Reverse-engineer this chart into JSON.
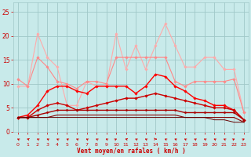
{
  "x": [
    0,
    1,
    2,
    3,
    4,
    5,
    6,
    7,
    8,
    9,
    10,
    11,
    12,
    13,
    14,
    15,
    16,
    17,
    18,
    19,
    20,
    21,
    22,
    23
  ],
  "series": [
    {
      "y": [
        9.5,
        9.5,
        20.5,
        15.5,
        13.5,
        5.5,
        5.5,
        10.5,
        9.5,
        9.5,
        20.5,
        13.0,
        18.0,
        13.0,
        18.0,
        22.5,
        18.0,
        13.5,
        13.5,
        15.5,
        15.5,
        13.0,
        13.0,
        4.0
      ],
      "color": "#ffaaaa",
      "lw": 0.8,
      "marker": "D",
      "ms": 1.8
    },
    {
      "y": [
        11.0,
        9.5,
        15.5,
        13.5,
        10.5,
        10.0,
        9.0,
        10.5,
        10.5,
        10.0,
        15.5,
        15.5,
        15.5,
        15.5,
        15.5,
        15.5,
        10.5,
        9.5,
        10.5,
        10.5,
        10.5,
        10.5,
        11.0,
        4.0
      ],
      "color": "#ff8888",
      "lw": 0.8,
      "marker": "D",
      "ms": 1.8
    },
    {
      "y": [
        3.0,
        3.5,
        5.5,
        8.5,
        9.5,
        9.5,
        8.5,
        8.0,
        9.5,
        9.5,
        9.5,
        9.5,
        8.0,
        9.5,
        12.0,
        11.5,
        9.5,
        8.5,
        7.0,
        6.5,
        5.5,
        5.5,
        4.5,
        2.5
      ],
      "color": "#ff0000",
      "lw": 1.0,
      "marker": "D",
      "ms": 1.8
    },
    {
      "y": [
        3.0,
        3.0,
        4.5,
        5.5,
        6.0,
        5.5,
        4.5,
        5.0,
        5.5,
        6.0,
        6.5,
        7.0,
        7.0,
        7.5,
        8.0,
        7.5,
        7.0,
        6.5,
        6.0,
        5.5,
        5.0,
        5.0,
        4.5,
        2.5
      ],
      "color": "#cc0000",
      "lw": 1.0,
      "marker": "D",
      "ms": 1.8
    },
    {
      "y": [
        3.0,
        3.0,
        3.5,
        4.0,
        4.5,
        4.5,
        4.5,
        4.5,
        4.5,
        4.5,
        4.5,
        4.5,
        4.5,
        4.5,
        4.5,
        4.5,
        4.5,
        4.0,
        4.0,
        4.0,
        4.0,
        4.0,
        4.0,
        2.5
      ],
      "color": "#aa0000",
      "lw": 1.0,
      "marker": "D",
      "ms": 1.5
    },
    {
      "y": [
        3.0,
        3.0,
        3.0,
        3.0,
        3.5,
        3.5,
        3.5,
        3.5,
        3.5,
        3.5,
        3.5,
        3.5,
        3.5,
        3.5,
        3.5,
        3.5,
        3.5,
        3.0,
        3.0,
        3.0,
        3.0,
        3.0,
        3.0,
        2.0
      ],
      "color": "#880000",
      "lw": 0.8,
      "marker": null,
      "ms": 0
    },
    {
      "y": [
        3.0,
        3.0,
        3.0,
        3.0,
        3.0,
        3.0,
        3.0,
        3.0,
        3.0,
        3.0,
        3.0,
        3.0,
        3.0,
        3.0,
        3.0,
        3.0,
        3.0,
        3.0,
        3.0,
        3.0,
        2.5,
        2.5,
        2.0,
        2.0
      ],
      "color": "#660000",
      "lw": 0.7,
      "marker": null,
      "ms": 0
    }
  ],
  "xlim": [
    -0.5,
    23.5
  ],
  "ylim": [
    0,
    27
  ],
  "yticks": [
    0,
    5,
    10,
    15,
    20,
    25
  ],
  "xticks": [
    0,
    1,
    2,
    3,
    4,
    5,
    6,
    7,
    8,
    9,
    10,
    11,
    12,
    13,
    14,
    15,
    16,
    17,
    18,
    19,
    20,
    21,
    22,
    23
  ],
  "xlabel": "Vent moyen/en rafales ( km/h )",
  "bg_color": "#c8eaea",
  "grid_color": "#a0c8c8",
  "tick_color": "#cc0000",
  "label_color": "#cc0000",
  "arrow_angles": [
    315,
    300,
    315,
    315,
    315,
    315,
    315,
    315,
    315,
    315,
    45,
    300,
    315,
    315,
    90,
    315,
    315,
    315,
    315,
    315,
    315,
    315,
    45,
    45
  ]
}
